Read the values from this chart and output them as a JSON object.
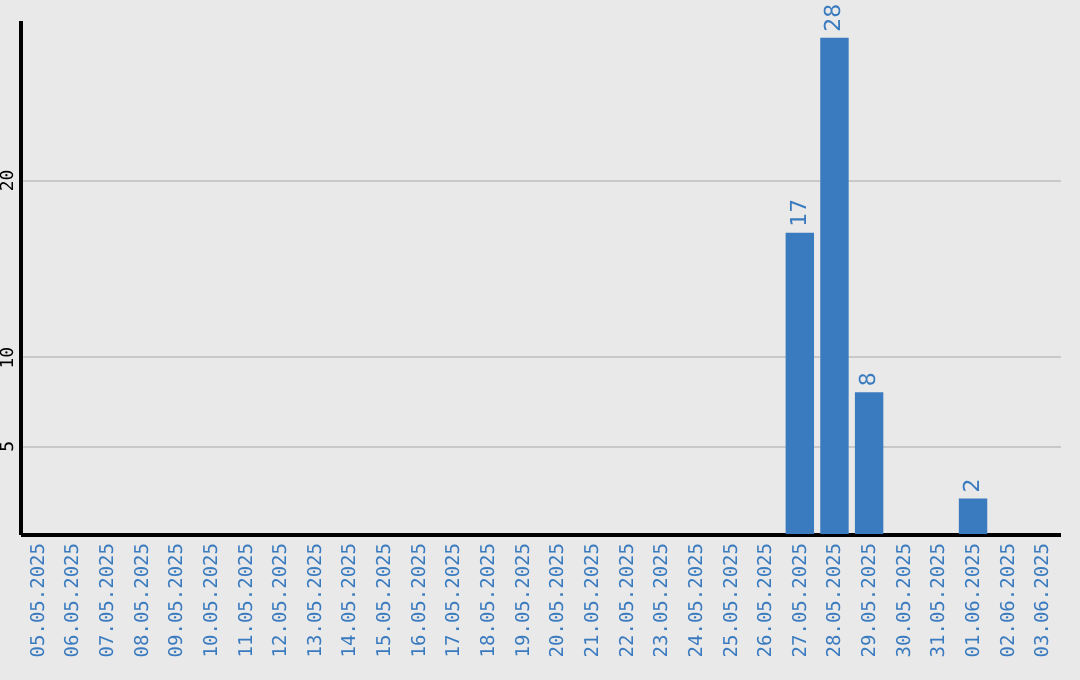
{
  "chart_data": {
    "type": "bar",
    "categories": [
      "05.05.2025",
      "06.05.2025",
      "07.05.2025",
      "08.05.2025",
      "09.05.2025",
      "10.05.2025",
      "11.05.2025",
      "12.05.2025",
      "13.05.2025",
      "14.05.2025",
      "15.05.2025",
      "16.05.2025",
      "17.05.2025",
      "18.05.2025",
      "19.05.2025",
      "20.05.2025",
      "21.05.2025",
      "22.05.2025",
      "23.05.2025",
      "24.05.2025",
      "25.05.2025",
      "26.05.2025",
      "27.05.2025",
      "28.05.2025",
      "29.05.2025",
      "30.05.2025",
      "31.05.2025",
      "01.06.2025",
      "02.06.2025",
      "03.06.2025"
    ],
    "values": [
      0,
      0,
      0,
      0,
      0,
      0,
      0,
      0,
      0,
      0,
      0,
      0,
      0,
      0,
      0,
      0,
      0,
      0,
      0,
      0,
      0,
      0,
      17,
      28,
      8,
      0,
      0,
      2,
      0,
      0
    ],
    "value_labels": [
      null,
      null,
      null,
      null,
      null,
      null,
      null,
      null,
      null,
      null,
      null,
      null,
      null,
      null,
      null,
      null,
      null,
      null,
      null,
      null,
      null,
      null,
      "17",
      "28",
      "8",
      null,
      null,
      "2",
      null,
      null
    ],
    "color": "#3a7bbf",
    "ylim": [
      0,
      29
    ],
    "yticks": [
      5,
      10,
      20
    ],
    "grid": "y"
  }
}
